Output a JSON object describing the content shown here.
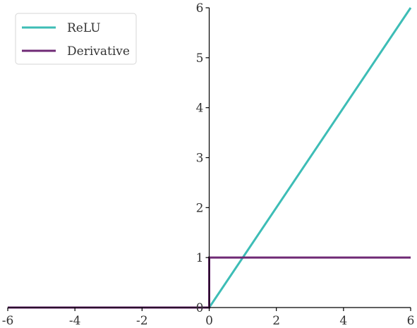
{
  "chart_data": {
    "type": "line",
    "xlim": [
      -6,
      6
    ],
    "ylim": [
      0,
      6
    ],
    "x_ticks": [
      -6,
      -4,
      -2,
      0,
      2,
      4,
      6
    ],
    "y_ticks": [
      0,
      1,
      2,
      3,
      4,
      5,
      6
    ],
    "x_tick_labels": [
      "-6",
      "-4",
      "-2",
      "0",
      "2",
      "4",
      "6"
    ],
    "y_tick_labels": [
      "0",
      "1",
      "2",
      "3",
      "4",
      "5",
      "6"
    ],
    "grid": false,
    "legend_position": "top-left",
    "series": [
      {
        "name": "ReLU",
        "color": "#3dbdb6",
        "points": [
          [
            -6,
            0
          ],
          [
            0,
            0
          ],
          [
            6,
            6
          ]
        ]
      },
      {
        "name": "Derivative",
        "color": "#6f2a75",
        "points": [
          [
            -6,
            0
          ],
          [
            0,
            0
          ],
          [
            0,
            1
          ],
          [
            6,
            1
          ]
        ]
      }
    ],
    "axis_color": "#000000"
  }
}
